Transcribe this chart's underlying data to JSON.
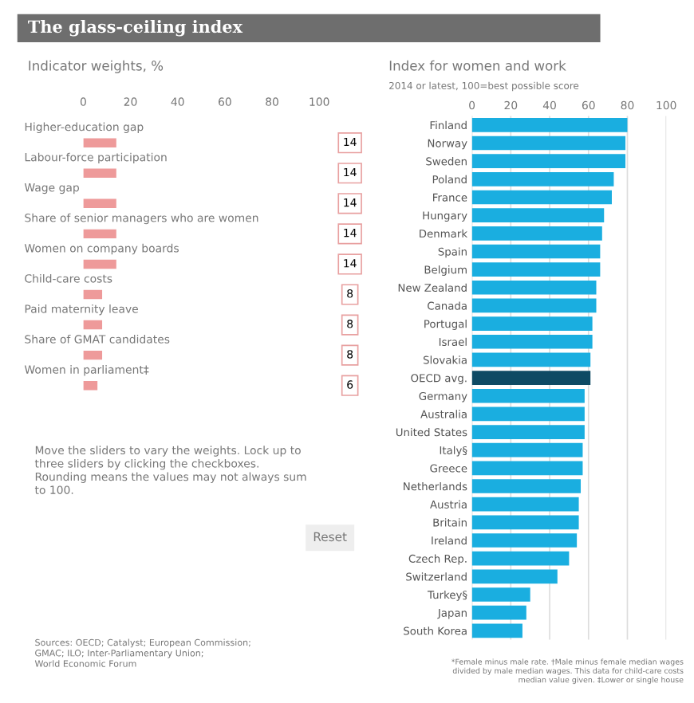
{
  "chart_data": [
    {
      "type": "bar",
      "orientation": "horizontal",
      "title": "The glass-ceiling index",
      "subtitle": "Indicator weights, %",
      "categories": [
        "Higher-education gap",
        "Labour-force participation",
        "Wage gap",
        "Share of senior managers who are women",
        "Women on company boards",
        "Child-care costs",
        "Paid maternity leave",
        "Share of GMAT candidates",
        "Women in parliament‡"
      ],
      "values": [
        14,
        14,
        14,
        14,
        14,
        8,
        8,
        8,
        6
      ],
      "color": "#ee9a9a",
      "xlim": [
        0,
        100
      ],
      "xticks": [
        0,
        20,
        40,
        60,
        80,
        100
      ],
      "data_labels": true,
      "grid": false,
      "annotations": [
        "Move the sliders to vary the weights. Lock up to\nthree sliders by clicking the checkboxes.\nRounding means the values may not always sum\nto 100.",
        "Reset",
        "Sources: OECD; Catalyst; European Commission;\nGMAC; ILO; Inter-Parliamentary Union;\nWorld Economic Forum"
      ]
    },
    {
      "type": "bar",
      "orientation": "horizontal",
      "title": "Index for women and work",
      "subtitle": "2014 or latest, 100=best possible score",
      "categories": [
        "Finland",
        "Norway",
        "Sweden",
        "Poland",
        "France",
        "Hungary",
        "Denmark",
        "Spain",
        "Belgium",
        "New Zealand",
        "Canada",
        "Portugal",
        "Israel",
        "Slovakia",
        "OECD avg.",
        "Germany",
        "Australia",
        "United States",
        "Italy§",
        "Greece",
        "Netherlands",
        "Austria",
        "Britain",
        "Ireland",
        "Czech Rep.",
        "Switzerland",
        "Turkey§",
        "Japan",
        "South Korea"
      ],
      "values": [
        80,
        79,
        79,
        73,
        72,
        68,
        67,
        66,
        66,
        64,
        64,
        62,
        62,
        61,
        61,
        58,
        58,
        58,
        57,
        57,
        56,
        55,
        55,
        54,
        50,
        44,
        30,
        28,
        26
      ],
      "colors": [
        "#1aaee0",
        "#1aaee0",
        "#1aaee0",
        "#1aaee0",
        "#1aaee0",
        "#1aaee0",
        "#1aaee0",
        "#1aaee0",
        "#1aaee0",
        "#1aaee0",
        "#1aaee0",
        "#1aaee0",
        "#1aaee0",
        "#1aaee0",
        "#0e4a64",
        "#1aaee0",
        "#1aaee0",
        "#1aaee0",
        "#1aaee0",
        "#1aaee0",
        "#1aaee0",
        "#1aaee0",
        "#1aaee0",
        "#1aaee0",
        "#1aaee0",
        "#1aaee0",
        "#1aaee0",
        "#1aaee0",
        "#1aaee0"
      ],
      "xlim": [
        0,
        100
      ],
      "xticks": [
        0,
        20,
        40,
        60,
        80,
        100
      ],
      "grid": "x",
      "annotations": [
        "*Female minus male rate. †Male minus female median wages\ndivided by male median wages. This data for child-care costs\nmedian value given. ‡Lower or single house"
      ]
    }
  ]
}
